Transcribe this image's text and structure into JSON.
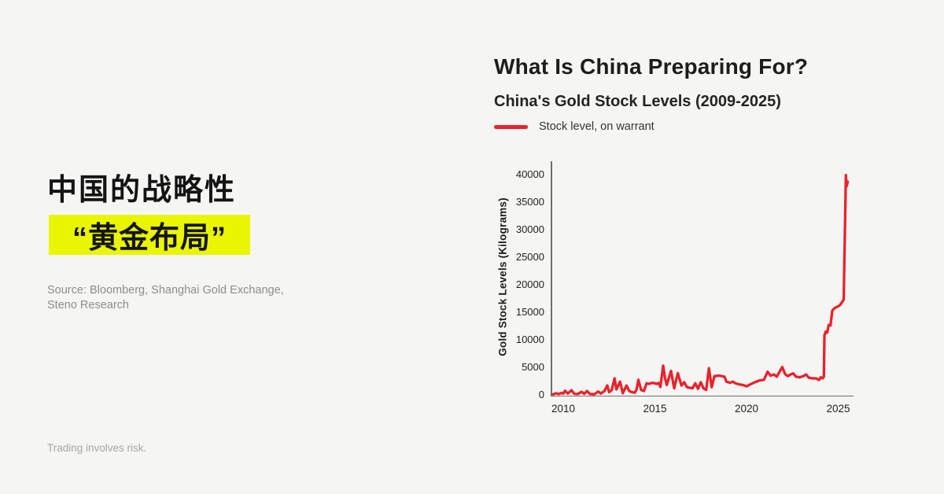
{
  "colors": {
    "background": "#f5f5f3",
    "accent_red": "#e8232e",
    "highlight_yellow": "#eaf502",
    "text_dark": "#1d1d1b",
    "text_gray": "#8d8d8d"
  },
  "left_panel": {
    "headline_line1": "中国的战略性",
    "headline_line2": "“黄金布局”",
    "source_line1": "Source: Bloomberg, Shanghai Gold Exchange,",
    "source_line2": "Steno Research",
    "disclaimer": "Trading involves risk."
  },
  "chart": {
    "title": "What Is China Preparing For?",
    "subtitle": "China's Gold Stock Levels (2009-2025)",
    "legend_label": "Stock level, on warrant",
    "y_axis_label": "Gold Stock Levels (Kilograms)"
  },
  "chart_data": {
    "type": "line",
    "title": "What Is China Preparing For?",
    "subtitle": "China's Gold Stock Levels (2009-2025)",
    "xlabel": "",
    "ylabel": "Gold Stock Levels (Kilograms)",
    "xlim": [
      2009.3,
      2025.9
    ],
    "ylim": [
      0,
      41000
    ],
    "x_ticks": [
      2010,
      2015,
      2020,
      2025
    ],
    "y_ticks": [
      0,
      5000,
      10000,
      15000,
      20000,
      25000,
      30000,
      35000,
      40000
    ],
    "grid": false,
    "legend_position": "top-left",
    "series": [
      {
        "name": "Stock level, on warrant",
        "color": "#e8232e",
        "points": [
          [
            2009.45,
            100
          ],
          [
            2009.6,
            300
          ],
          [
            2009.75,
            150
          ],
          [
            2009.9,
            350
          ],
          [
            2010.0,
            250
          ],
          [
            2010.1,
            750
          ],
          [
            2010.25,
            250
          ],
          [
            2010.45,
            850
          ],
          [
            2010.6,
            200
          ],
          [
            2010.8,
            150
          ],
          [
            2011.0,
            550
          ],
          [
            2011.15,
            200
          ],
          [
            2011.3,
            700
          ],
          [
            2011.45,
            150
          ],
          [
            2011.7,
            120
          ],
          [
            2011.9,
            600
          ],
          [
            2012.05,
            250
          ],
          [
            2012.25,
            700
          ],
          [
            2012.4,
            1700
          ],
          [
            2012.5,
            500
          ],
          [
            2012.65,
            900
          ],
          [
            2012.8,
            3000
          ],
          [
            2012.9,
            1000
          ],
          [
            2013.1,
            2400
          ],
          [
            2013.25,
            300
          ],
          [
            2013.45,
            1700
          ],
          [
            2013.6,
            700
          ],
          [
            2013.75,
            500
          ],
          [
            2013.9,
            400
          ],
          [
            2014.0,
            1000
          ],
          [
            2014.1,
            2750
          ],
          [
            2014.25,
            900
          ],
          [
            2014.4,
            700
          ],
          [
            2014.55,
            2100
          ],
          [
            2014.7,
            2000
          ],
          [
            2014.85,
            2200
          ],
          [
            2015.0,
            2100
          ],
          [
            2015.1,
            2000
          ],
          [
            2015.2,
            2150
          ],
          [
            2015.3,
            1450
          ],
          [
            2015.45,
            5300
          ],
          [
            2015.55,
            3100
          ],
          [
            2015.65,
            1800
          ],
          [
            2015.88,
            4350
          ],
          [
            2016.05,
            1200
          ],
          [
            2016.25,
            3950
          ],
          [
            2016.45,
            1700
          ],
          [
            2016.6,
            2300
          ],
          [
            2016.75,
            1400
          ],
          [
            2016.9,
            1300
          ],
          [
            2017.05,
            1200
          ],
          [
            2017.2,
            2100
          ],
          [
            2017.35,
            1100
          ],
          [
            2017.5,
            2300
          ],
          [
            2017.65,
            1200
          ],
          [
            2017.8,
            900
          ],
          [
            2017.95,
            4850
          ],
          [
            2018.1,
            1400
          ],
          [
            2018.25,
            3400
          ],
          [
            2018.5,
            3500
          ],
          [
            2018.8,
            3300
          ],
          [
            2018.9,
            2400
          ],
          [
            2019.1,
            2200
          ],
          [
            2019.25,
            2400
          ],
          [
            2019.4,
            2100
          ],
          [
            2019.6,
            1900
          ],
          [
            2019.8,
            1800
          ],
          [
            2020.0,
            1550
          ],
          [
            2020.2,
            1900
          ],
          [
            2020.45,
            2300
          ],
          [
            2020.7,
            2600
          ],
          [
            2020.95,
            2750
          ],
          [
            2021.15,
            4200
          ],
          [
            2021.3,
            3500
          ],
          [
            2021.5,
            3700
          ],
          [
            2021.65,
            3300
          ],
          [
            2021.95,
            5050
          ],
          [
            2022.1,
            3800
          ],
          [
            2022.25,
            3400
          ],
          [
            2022.4,
            3700
          ],
          [
            2022.55,
            3900
          ],
          [
            2022.7,
            3300
          ],
          [
            2022.9,
            3200
          ],
          [
            2023.1,
            3400
          ],
          [
            2023.25,
            3700
          ],
          [
            2023.4,
            3100
          ],
          [
            2023.6,
            3000
          ],
          [
            2023.8,
            3000
          ],
          [
            2023.95,
            2700
          ],
          [
            2024.05,
            3200
          ],
          [
            2024.15,
            3000
          ],
          [
            2024.22,
            3300
          ],
          [
            2024.25,
            10800
          ],
          [
            2024.32,
            11500
          ],
          [
            2024.4,
            11300
          ],
          [
            2024.48,
            12700
          ],
          [
            2024.58,
            12600
          ],
          [
            2024.68,
            15300
          ],
          [
            2024.82,
            15800
          ],
          [
            2024.95,
            16000
          ],
          [
            2025.1,
            16300
          ],
          [
            2025.3,
            17300
          ],
          [
            2025.42,
            39900
          ],
          [
            2025.46,
            37900
          ],
          [
            2025.52,
            38700
          ]
        ]
      }
    ]
  }
}
